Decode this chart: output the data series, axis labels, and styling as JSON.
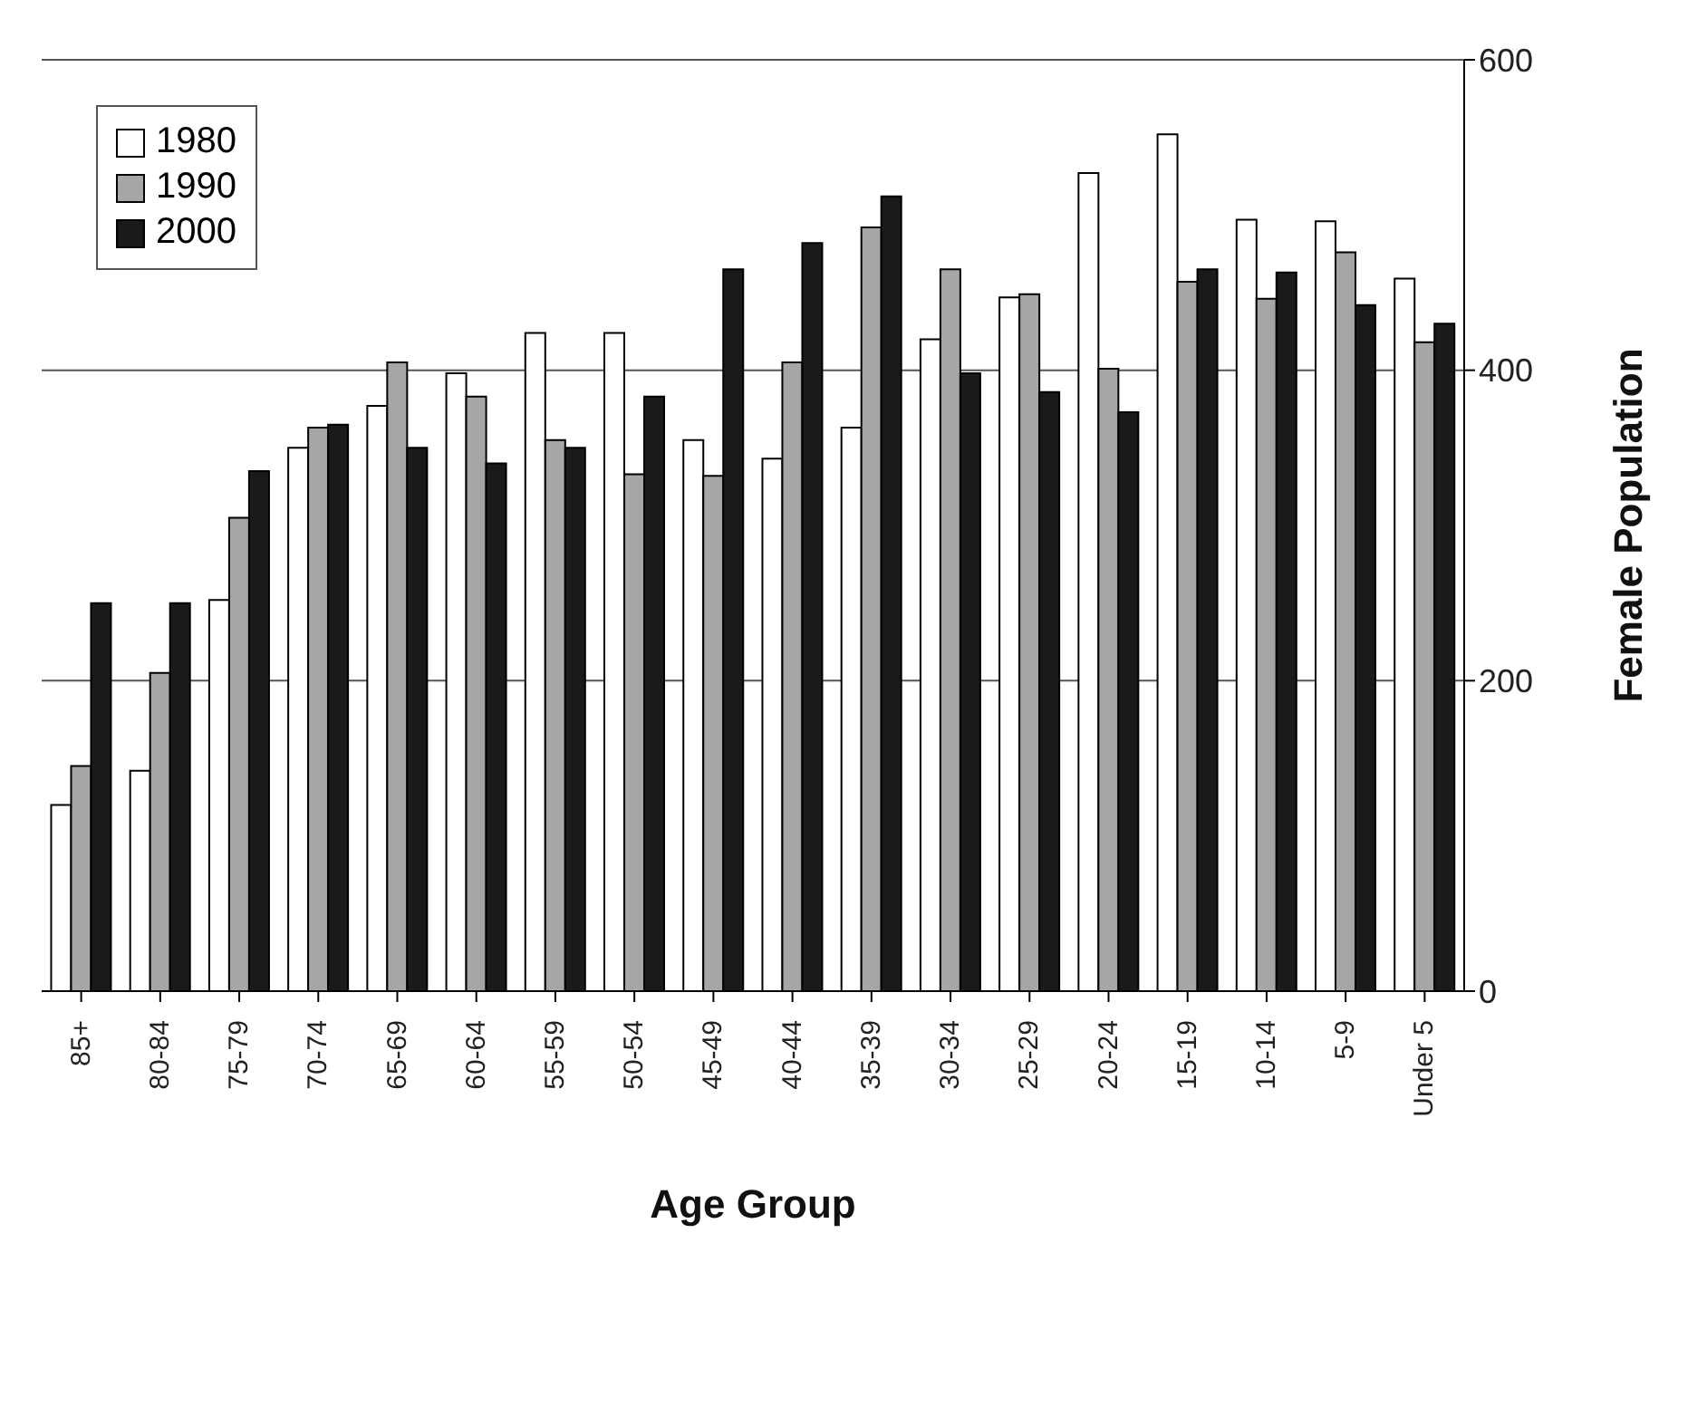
{
  "chart_data": {
    "type": "bar",
    "xlabel": "Age Group",
    "ylabel": "Female Population",
    "categories": [
      "85+",
      "80-84",
      "75-79",
      "70-74",
      "65-69",
      "60-64",
      "55-59",
      "50-54",
      "45-49",
      "40-44",
      "35-39",
      "30-34",
      "25-29",
      "20-24",
      "15-19",
      "10-14",
      "5-9",
      "Under 5"
    ],
    "series": [
      {
        "name": "1980",
        "color": "#ffffff",
        "values": [
          120,
          142,
          252,
          350,
          377,
          398,
          424,
          424,
          355,
          343,
          363,
          420,
          447,
          527,
          552,
          497,
          496,
          459
        ]
      },
      {
        "name": "1990",
        "color": "#a6a6a6",
        "values": [
          145,
          205,
          305,
          363,
          405,
          383,
          355,
          333,
          332,
          405,
          492,
          465,
          449,
          401,
          457,
          446,
          476,
          418
        ]
      },
      {
        "name": "2000",
        "color": "#1a1a1a",
        "values": [
          250,
          250,
          335,
          365,
          350,
          340,
          350,
          383,
          465,
          482,
          512,
          398,
          386,
          373,
          465,
          463,
          442,
          430
        ]
      }
    ],
    "ylim": [
      0,
      600
    ],
    "yticks": [
      0,
      200,
      400,
      600
    ],
    "grid": "y",
    "legend": "top left"
  }
}
